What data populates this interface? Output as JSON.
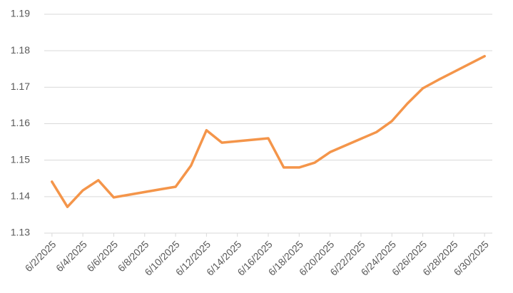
{
  "chart_data": {
    "type": "line",
    "x": [
      "6/2/2025",
      "6/3/2025",
      "6/4/2025",
      "6/5/2025",
      "6/6/2025",
      "6/9/2025",
      "6/10/2025",
      "6/11/2025",
      "6/12/2025",
      "6/13/2025",
      "6/16/2025",
      "6/17/2025",
      "6/18/2025",
      "6/19/2025",
      "6/20/2025",
      "6/23/2025",
      "6/24/2025",
      "6/25/2025",
      "6/26/2025",
      "6/27/2025",
      "6/30/2025"
    ],
    "series": [
      {
        "color": "#f4954a",
        "values": [
          1.1441,
          1.1372,
          1.1417,
          1.1445,
          1.1398,
          1.142,
          1.1427,
          1.1485,
          1.1582,
          1.1548,
          1.156,
          1.148,
          1.148,
          1.1493,
          1.1522,
          1.1577,
          1.1607,
          1.1655,
          1.1697,
          1.172,
          1.1785
        ]
      }
    ],
    "xticks": [
      "6/2/2025",
      "6/4/2025",
      "6/6/2025",
      "6/8/2025",
      "6/10/2025",
      "6/12/2025",
      "6/14/2025",
      "6/16/2025",
      "6/18/2025",
      "6/20/2025",
      "6/22/2025",
      "6/24/2025",
      "6/26/2025",
      "6/28/2025",
      "6/30/2025"
    ],
    "ylim": [
      1.13,
      1.19
    ],
    "yticks": [
      1.13,
      1.14,
      1.15,
      1.16,
      1.17,
      1.18,
      1.19
    ],
    "grid": true
  }
}
